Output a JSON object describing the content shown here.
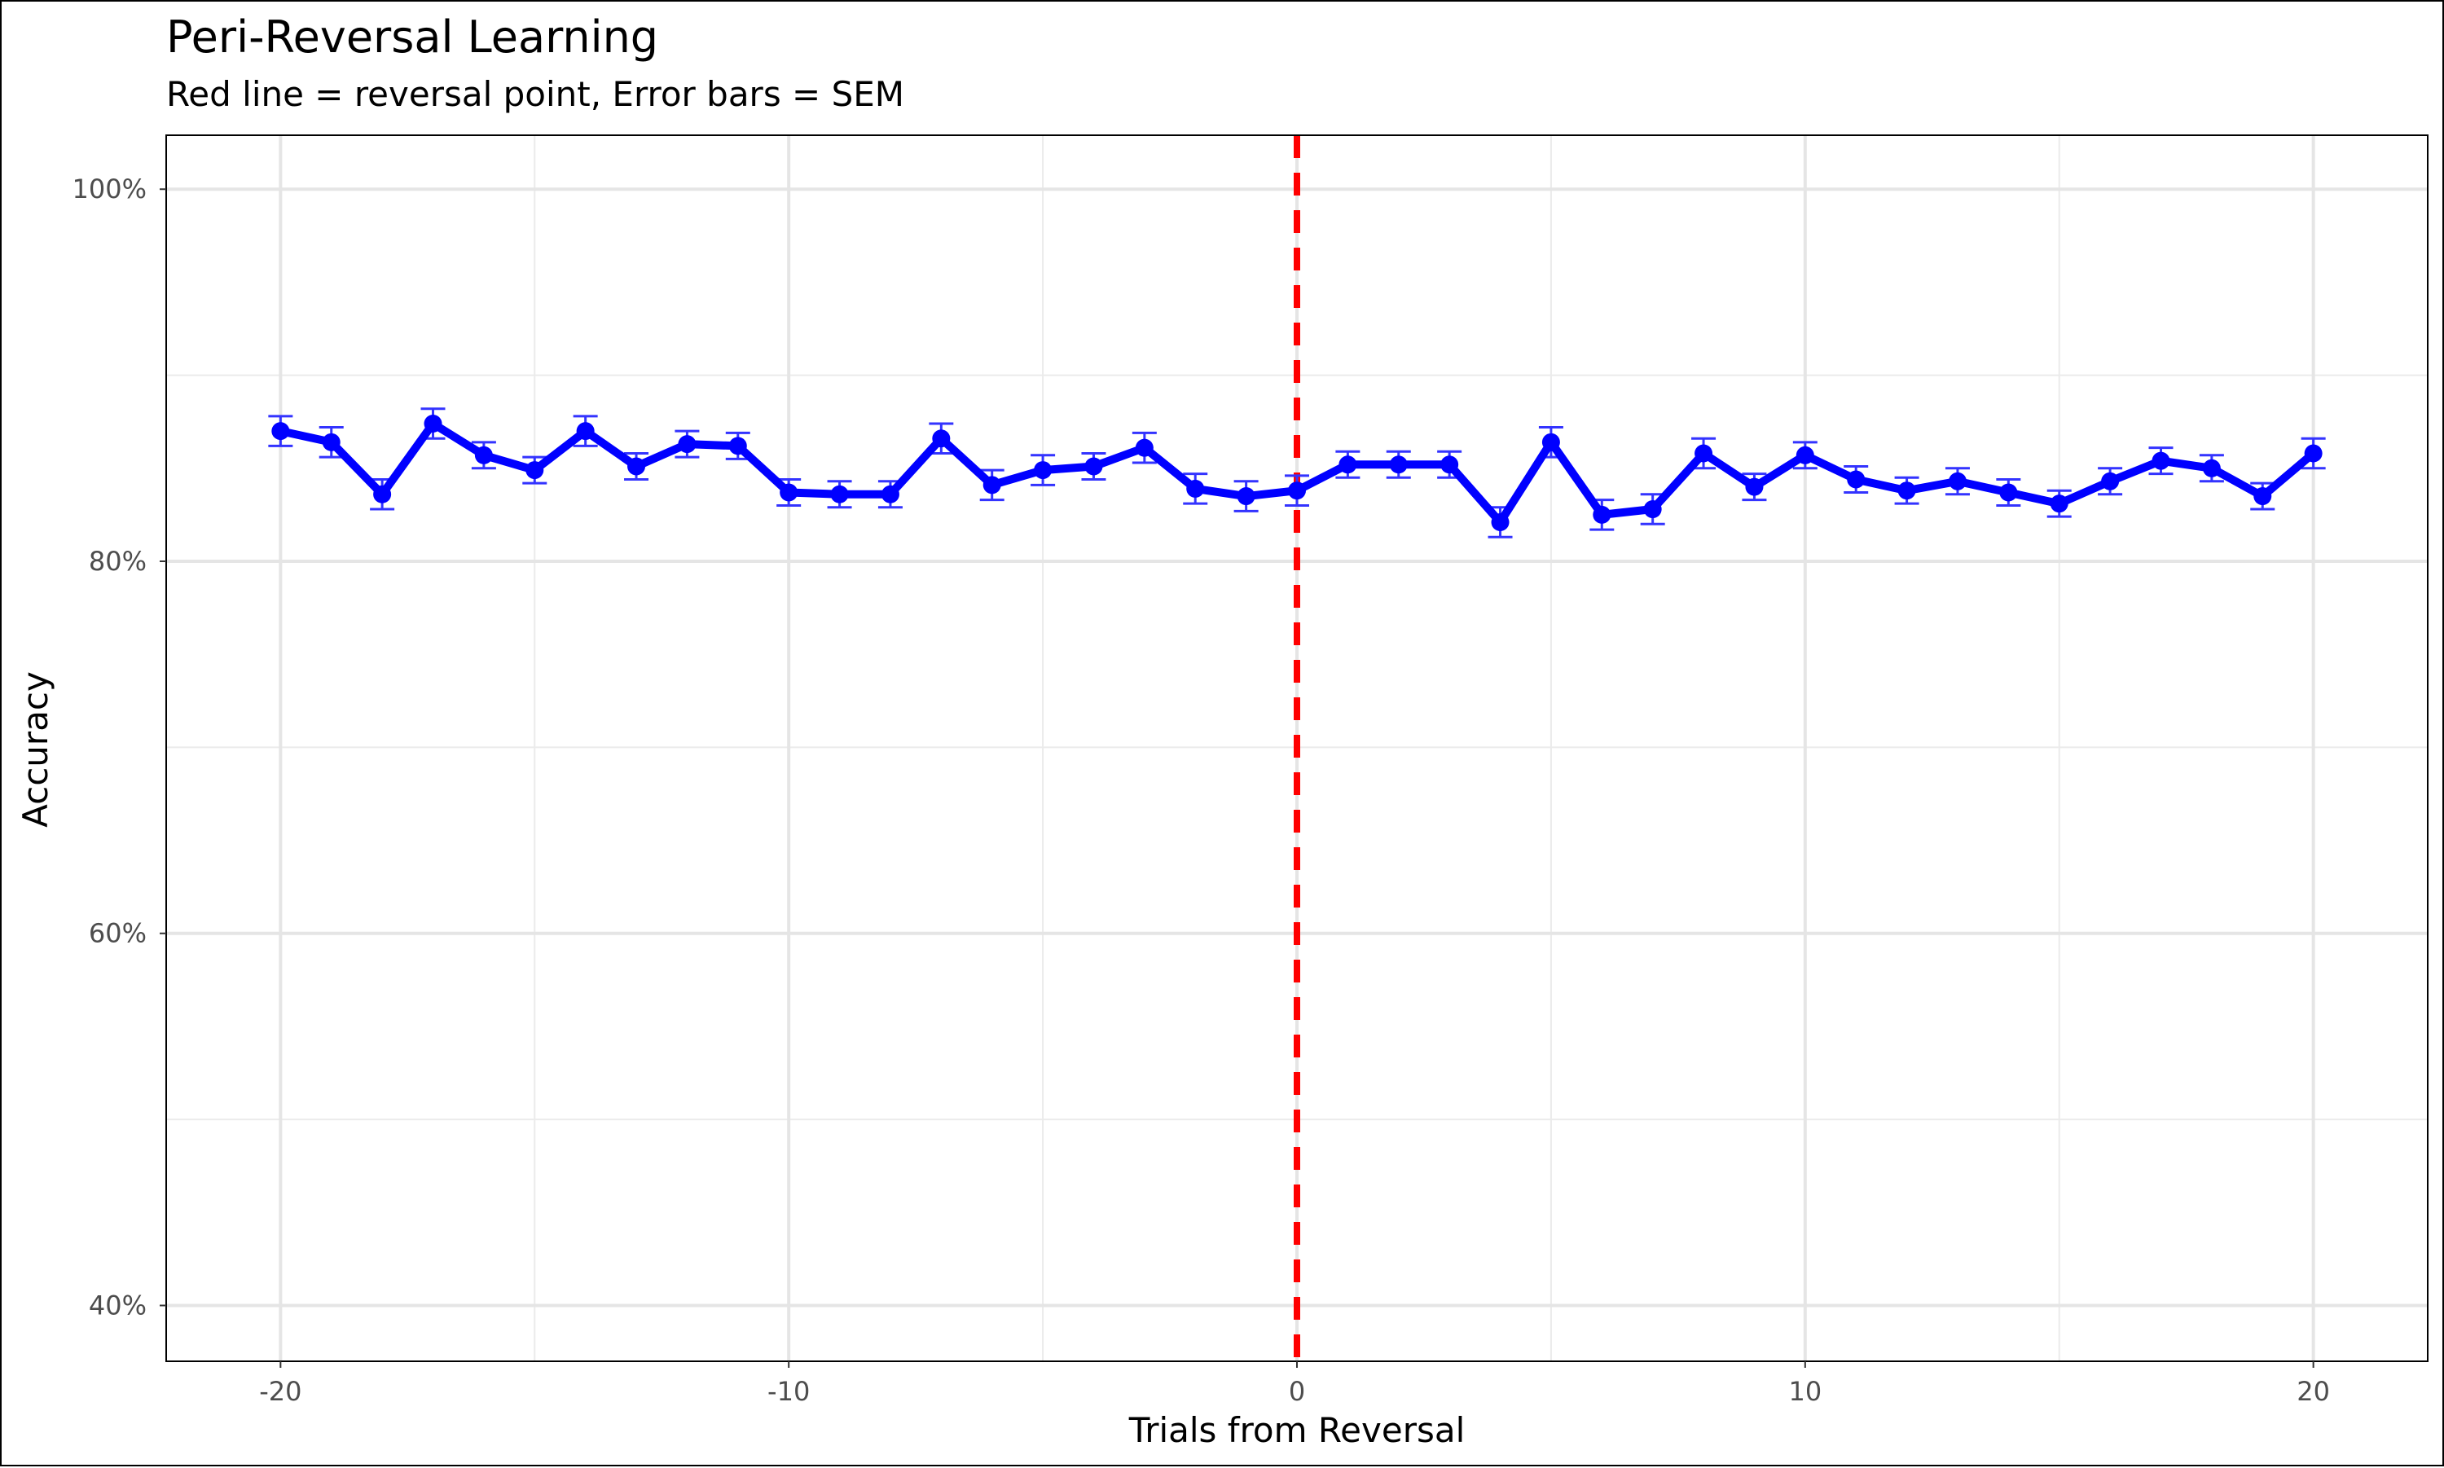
{
  "chart_data": {
    "type": "line",
    "title": "Peri-Reversal Learning",
    "subtitle": "Red line = reversal point, Error bars = SEM",
    "xlabel": "Trials from Reversal",
    "ylabel": "Accuracy",
    "xlim": [
      -22.25,
      22.25
    ],
    "ylim": [
      0.37,
      1.029
    ],
    "x_ticks": [
      -20,
      -10,
      0,
      10,
      20
    ],
    "x_tick_labels": [
      "-20",
      "-10",
      "0",
      "10",
      "20"
    ],
    "y_ticks": [
      0.4,
      0.6,
      0.8,
      1.0
    ],
    "y_tick_labels": [
      "40%",
      "60%",
      "80%",
      "100%"
    ],
    "y_minor_ticks": [
      0.5,
      0.7,
      0.9
    ],
    "x_minor_ticks": [
      -15,
      -5,
      5,
      15
    ],
    "grid": true,
    "reversal_line": {
      "x": 0,
      "color": "#ff0000",
      "style": "dashed"
    },
    "series": [
      {
        "color": "#0000ff",
        "x": [
          -20,
          -19,
          -18,
          -17,
          -16,
          -15,
          -14,
          -13,
          -12,
          -11,
          -10,
          -9,
          -8,
          -7,
          -6,
          -5,
          -4,
          -3,
          -2,
          -1,
          0,
          1,
          2,
          3,
          4,
          5,
          6,
          7,
          8,
          9,
          10,
          11,
          12,
          13,
          14,
          15,
          16,
          17,
          18,
          19,
          20
        ],
        "y": [
          0.87,
          0.864,
          0.836,
          0.874,
          0.857,
          0.849,
          0.87,
          0.851,
          0.863,
          0.862,
          0.837,
          0.836,
          0.836,
          0.866,
          0.841,
          0.849,
          0.851,
          0.861,
          0.839,
          0.835,
          0.838,
          0.852,
          0.852,
          0.852,
          0.821,
          0.864,
          0.825,
          0.828,
          0.858,
          0.84,
          0.857,
          0.844,
          0.838,
          0.843,
          0.837,
          0.831,
          0.843,
          0.854,
          0.85,
          0.835,
          0.858
        ],
        "sem": [
          0.008,
          0.008,
          0.008,
          0.008,
          0.007,
          0.007,
          0.008,
          0.007,
          0.007,
          0.007,
          0.007,
          0.007,
          0.007,
          0.008,
          0.008,
          0.008,
          0.007,
          0.008,
          0.008,
          0.008,
          0.008,
          0.007,
          0.007,
          0.007,
          0.008,
          0.008,
          0.008,
          0.008,
          0.008,
          0.007,
          0.007,
          0.007,
          0.007,
          0.007,
          0.007,
          0.007,
          0.007,
          0.007,
          0.007,
          0.007,
          0.008
        ]
      }
    ]
  }
}
